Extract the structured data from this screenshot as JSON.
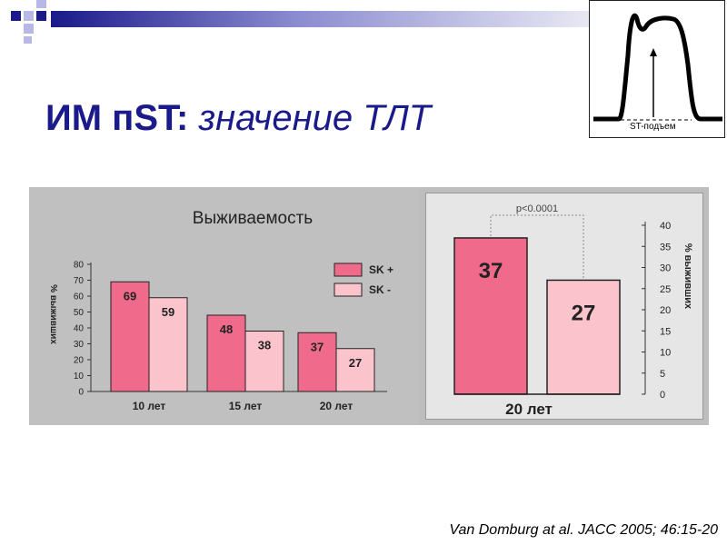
{
  "slide": {
    "title_bold": "ИМ пST:",
    "title_italic": "значение ТЛТ",
    "citation": "Van Domburg at al. JACC 2005; 46:15-20"
  },
  "ecg_inset": {
    "label": "ST-подъем"
  },
  "colors": {
    "sk_plus": "#f06a8c",
    "sk_minus": "#fbc4cc",
    "title": "#1a1a8a",
    "deco_navy": "#1a1a8a",
    "deco_lavender": "#b8b8e8"
  },
  "chart_data": [
    {
      "type": "bar",
      "title": "Выживаемость",
      "ylabel": "% выживших",
      "categories": [
        "10 лет",
        "15 лет",
        "20 лет"
      ],
      "ylim": [
        0,
        80
      ],
      "yticks": [
        0,
        10,
        20,
        30,
        40,
        50,
        60,
        70,
        80
      ],
      "series": [
        {
          "name": "SK +",
          "values": [
            69,
            48,
            37
          ]
        },
        {
          "name": "SK -",
          "values": [
            59,
            38,
            27
          ]
        }
      ],
      "legend_position": "top-right",
      "data_labels": true
    },
    {
      "type": "bar",
      "categories": [
        "20 лет"
      ],
      "series": [
        {
          "values": [
            37
          ]
        },
        {
          "values": [
            27
          ]
        }
      ],
      "ylabel": "% выживших",
      "ylim": [
        0,
        40
      ],
      "yticks": [
        0,
        5,
        10,
        15,
        20,
        25,
        30,
        35,
        40
      ],
      "yaxis_side": "right",
      "annotation": "p<0.0001",
      "data_labels": true
    }
  ]
}
